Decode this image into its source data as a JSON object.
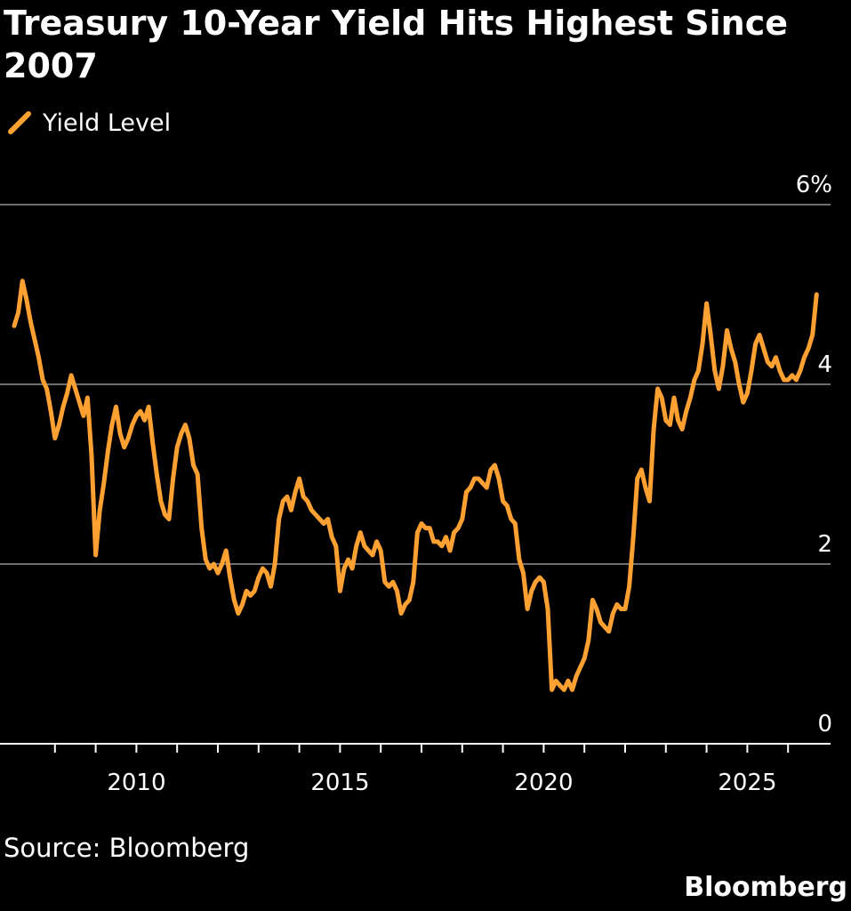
{
  "header": {
    "title": "Treasury 10-Year Yield Hits Highest Since 2007"
  },
  "legend": {
    "label": "Yield Level",
    "color": "#ffa032"
  },
  "footer": {
    "source": "Source: Bloomberg",
    "brand": "Bloomberg"
  },
  "colors": {
    "background": "#000000",
    "line": "#ffa032",
    "grid": "#6e6e6e",
    "axis": "#ffffff",
    "text": "#ffffff"
  },
  "chart_data": {
    "type": "line",
    "title": "Treasury 10-Year Yield Hits Highest Since 2007",
    "xlabel": "",
    "ylabel": "",
    "xlim": [
      2007.0,
      2027.0
    ],
    "ylim": [
      0,
      6
    ],
    "y_ticks": [
      {
        "value": 6,
        "label": "6%"
      },
      {
        "value": 4,
        "label": "4"
      },
      {
        "value": 2,
        "label": "2"
      },
      {
        "value": 0,
        "label": "0"
      }
    ],
    "x_ticks": [
      {
        "value": 2010,
        "label": "2010"
      },
      {
        "value": 2015,
        "label": "2015"
      },
      {
        "value": 2020,
        "label": "2020"
      },
      {
        "value": 2025,
        "label": "2025"
      }
    ],
    "x_minor_ticks": [
      2008,
      2009,
      2011,
      2012,
      2013,
      2014,
      2016,
      2017,
      2018,
      2019,
      2021,
      2022,
      2023,
      2024,
      2026
    ],
    "grid": true,
    "legend_position": "top-left",
    "series": [
      {
        "name": "Yield Level",
        "color": "#ffa032",
        "x": [
          2007.0,
          2007.1,
          2007.2,
          2007.3,
          2007.4,
          2007.5,
          2007.6,
          2007.7,
          2007.8,
          2007.9,
          2008.0,
          2008.1,
          2008.2,
          2008.3,
          2008.4,
          2008.5,
          2008.6,
          2008.7,
          2008.8,
          2008.9,
          2009.0,
          2009.1,
          2009.2,
          2009.3,
          2009.4,
          2009.5,
          2009.6,
          2009.7,
          2009.8,
          2009.9,
          2010.0,
          2010.1,
          2010.2,
          2010.3,
          2010.4,
          2010.5,
          2010.6,
          2010.7,
          2010.8,
          2010.9,
          2011.0,
          2011.1,
          2011.2,
          2011.3,
          2011.4,
          2011.5,
          2011.6,
          2011.7,
          2011.8,
          2011.9,
          2012.0,
          2012.1,
          2012.2,
          2012.3,
          2012.4,
          2012.5,
          2012.6,
          2012.7,
          2012.8,
          2012.9,
          2013.0,
          2013.1,
          2013.2,
          2013.3,
          2013.4,
          2013.5,
          2013.6,
          2013.7,
          2013.8,
          2013.9,
          2014.0,
          2014.1,
          2014.2,
          2014.3,
          2014.4,
          2014.5,
          2014.6,
          2014.7,
          2014.8,
          2014.9,
          2015.0,
          2015.1,
          2015.2,
          2015.3,
          2015.4,
          2015.5,
          2015.6,
          2015.7,
          2015.8,
          2015.9,
          2016.0,
          2016.1,
          2016.2,
          2016.3,
          2016.4,
          2016.5,
          2016.6,
          2016.7,
          2016.8,
          2016.9,
          2017.0,
          2017.1,
          2017.2,
          2017.3,
          2017.4,
          2017.5,
          2017.6,
          2017.7,
          2017.8,
          2017.9,
          2018.0,
          2018.1,
          2018.2,
          2018.3,
          2018.4,
          2018.5,
          2018.6,
          2018.7,
          2018.8,
          2018.9,
          2019.0,
          2019.1,
          2019.2,
          2019.3,
          2019.4,
          2019.5,
          2019.6,
          2019.7,
          2019.8,
          2019.9,
          2020.0,
          2020.1,
          2020.2,
          2020.3,
          2020.4,
          2020.5,
          2020.6,
          2020.7,
          2020.8,
          2020.9,
          2021.0,
          2021.1,
          2021.2,
          2021.3,
          2021.4,
          2021.5,
          2021.6,
          2021.7,
          2021.8,
          2021.9,
          2022.0,
          2022.1,
          2022.2,
          2022.3,
          2022.4,
          2022.5,
          2022.6,
          2022.7,
          2022.8,
          2022.9,
          2023.0,
          2023.1,
          2023.2,
          2023.3,
          2023.4,
          2023.5,
          2023.6,
          2023.7,
          2023.8,
          2023.9,
          2024.0,
          2024.1,
          2024.2,
          2024.3,
          2024.4,
          2024.5,
          2024.6,
          2024.7,
          2024.8,
          2024.9,
          2025.0,
          2025.1,
          2025.2,
          2025.3,
          2025.4,
          2025.5,
          2025.6,
          2025.7,
          2025.8,
          2025.9,
          2026.0,
          2026.1,
          2026.2,
          2026.3,
          2026.4,
          2026.5,
          2026.6,
          2026.7
        ],
        "values": [
          4.65,
          4.8,
          5.15,
          4.95,
          4.7,
          4.5,
          4.3,
          4.05,
          3.95,
          3.7,
          3.4,
          3.55,
          3.75,
          3.9,
          4.1,
          3.95,
          3.8,
          3.65,
          3.85,
          3.2,
          2.1,
          2.6,
          2.9,
          3.25,
          3.55,
          3.75,
          3.45,
          3.3,
          3.4,
          3.55,
          3.65,
          3.7,
          3.6,
          3.75,
          3.35,
          3.0,
          2.7,
          2.55,
          2.5,
          2.95,
          3.3,
          3.45,
          3.55,
          3.4,
          3.1,
          3.0,
          2.4,
          2.05,
          1.95,
          2.0,
          1.9,
          2.0,
          2.15,
          1.85,
          1.6,
          1.45,
          1.55,
          1.7,
          1.65,
          1.7,
          1.85,
          1.95,
          1.9,
          1.75,
          2.0,
          2.5,
          2.7,
          2.75,
          2.6,
          2.8,
          2.95,
          2.75,
          2.7,
          2.6,
          2.55,
          2.5,
          2.45,
          2.5,
          2.3,
          2.2,
          1.7,
          1.95,
          2.05,
          1.95,
          2.2,
          2.35,
          2.2,
          2.15,
          2.1,
          2.25,
          2.15,
          1.8,
          1.75,
          1.8,
          1.7,
          1.45,
          1.55,
          1.6,
          1.8,
          2.35,
          2.45,
          2.4,
          2.4,
          2.25,
          2.25,
          2.2,
          2.3,
          2.15,
          2.35,
          2.4,
          2.5,
          2.8,
          2.85,
          2.95,
          2.95,
          2.9,
          2.85,
          3.05,
          3.1,
          2.95,
          2.7,
          2.65,
          2.5,
          2.45,
          2.05,
          1.9,
          1.5,
          1.7,
          1.8,
          1.85,
          1.8,
          1.5,
          0.6,
          0.7,
          0.65,
          0.6,
          0.7,
          0.6,
          0.75,
          0.85,
          0.95,
          1.15,
          1.6,
          1.5,
          1.35,
          1.3,
          1.25,
          1.45,
          1.55,
          1.5,
          1.5,
          1.75,
          2.3,
          2.95,
          3.05,
          2.85,
          2.7,
          3.5,
          3.95,
          3.85,
          3.6,
          3.55,
          3.85,
          3.6,
          3.5,
          3.7,
          3.85,
          4.05,
          4.15,
          4.45,
          4.9,
          4.55,
          4.15,
          3.95,
          4.2,
          4.6,
          4.4,
          4.25,
          4.0,
          3.8,
          3.9,
          4.15,
          4.45,
          4.55,
          4.4,
          4.25,
          4.2,
          4.3,
          4.15,
          4.05,
          4.05,
          4.1,
          4.05,
          4.15,
          4.3,
          4.4,
          4.55,
          5.0
        ]
      }
    ]
  }
}
